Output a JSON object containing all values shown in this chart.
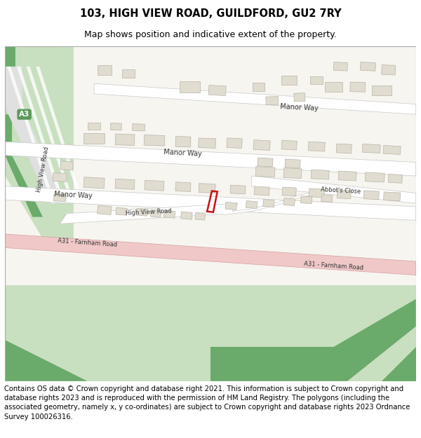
{
  "title_line1": "103, HIGH VIEW ROAD, GUILDFORD, GU2 7RY",
  "title_line2": "Map shows position and indicative extent of the property.",
  "footer_text": "Contains OS data © Crown copyright and database right 2021. This information is subject to Crown copyright and database rights 2023 and is reproduced with the permission of HM Land Registry. The polygons (including the associated geometry, namely x, y co-ordinates) are subject to Crown copyright and database rights 2023 Ordnance Survey 100026316.",
  "map_bg": "#f7f5f0",
  "green_light": "#c8dfc0",
  "green_dark": "#6aaa6a",
  "road_pink": "#f0c8c8",
  "road_white": "#ffffff",
  "road_edge": "#c8c8c8",
  "building_fill": "#e0dcd0",
  "building_edge": "#b8b4a8",
  "highlight_color": "#cc1111",
  "a3_green": "#5a9a5a",
  "text_dark": "#333333",
  "title_fs": 10.5,
  "subtitle_fs": 9,
  "footer_fs": 7.2,
  "label_fs": 7,
  "small_label_fs": 6
}
